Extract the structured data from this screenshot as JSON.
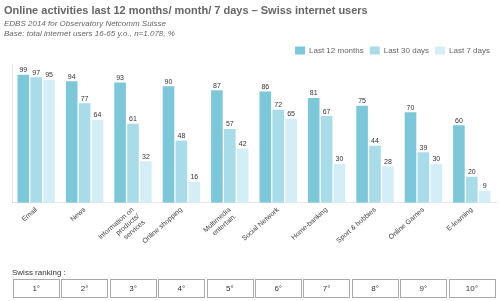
{
  "chart_data": {
    "type": "bar",
    "title": "Online activities last 12 months/ month/ 7 days – Swiss internet users",
    "source": "EDBS 2014 for Observatory Netcomm Suisse",
    "subtitle": "Base: total internet users 16-65 y.o., n=1.078, %",
    "categories": [
      "Email",
      "News",
      "Information on\nproducts/\nservices",
      "Online shopping",
      "Multimedia\nentertain.",
      "Social Network",
      "Home-banking",
      "Sport & hobbies",
      "Online Games",
      "E-learning"
    ],
    "series": [
      {
        "name": "Last 12 months",
        "color": "#7dc8d8",
        "values": [
          99,
          94,
          93,
          90,
          87,
          86,
          81,
          75,
          70,
          60
        ]
      },
      {
        "name": "Last 30 days",
        "color": "#a8dce8",
        "values": [
          97,
          77,
          61,
          48,
          57,
          72,
          67,
          44,
          39,
          20
        ]
      },
      {
        "name": "Last 7 days",
        "color": "#d4eef7",
        "values": [
          95,
          64,
          32,
          16,
          42,
          65,
          30,
          28,
          30,
          9
        ]
      }
    ],
    "ylim": [
      0,
      107
    ],
    "tick_labels": "x",
    "grid": false,
    "legend": "upper right",
    "data_labels": true,
    "rankings_label": "Swiss ranking :",
    "rankings": [
      "1°",
      "2°",
      "3°",
      "4°",
      "5°",
      "6°",
      "7°",
      "8°",
      "9°",
      "10°"
    ]
  }
}
